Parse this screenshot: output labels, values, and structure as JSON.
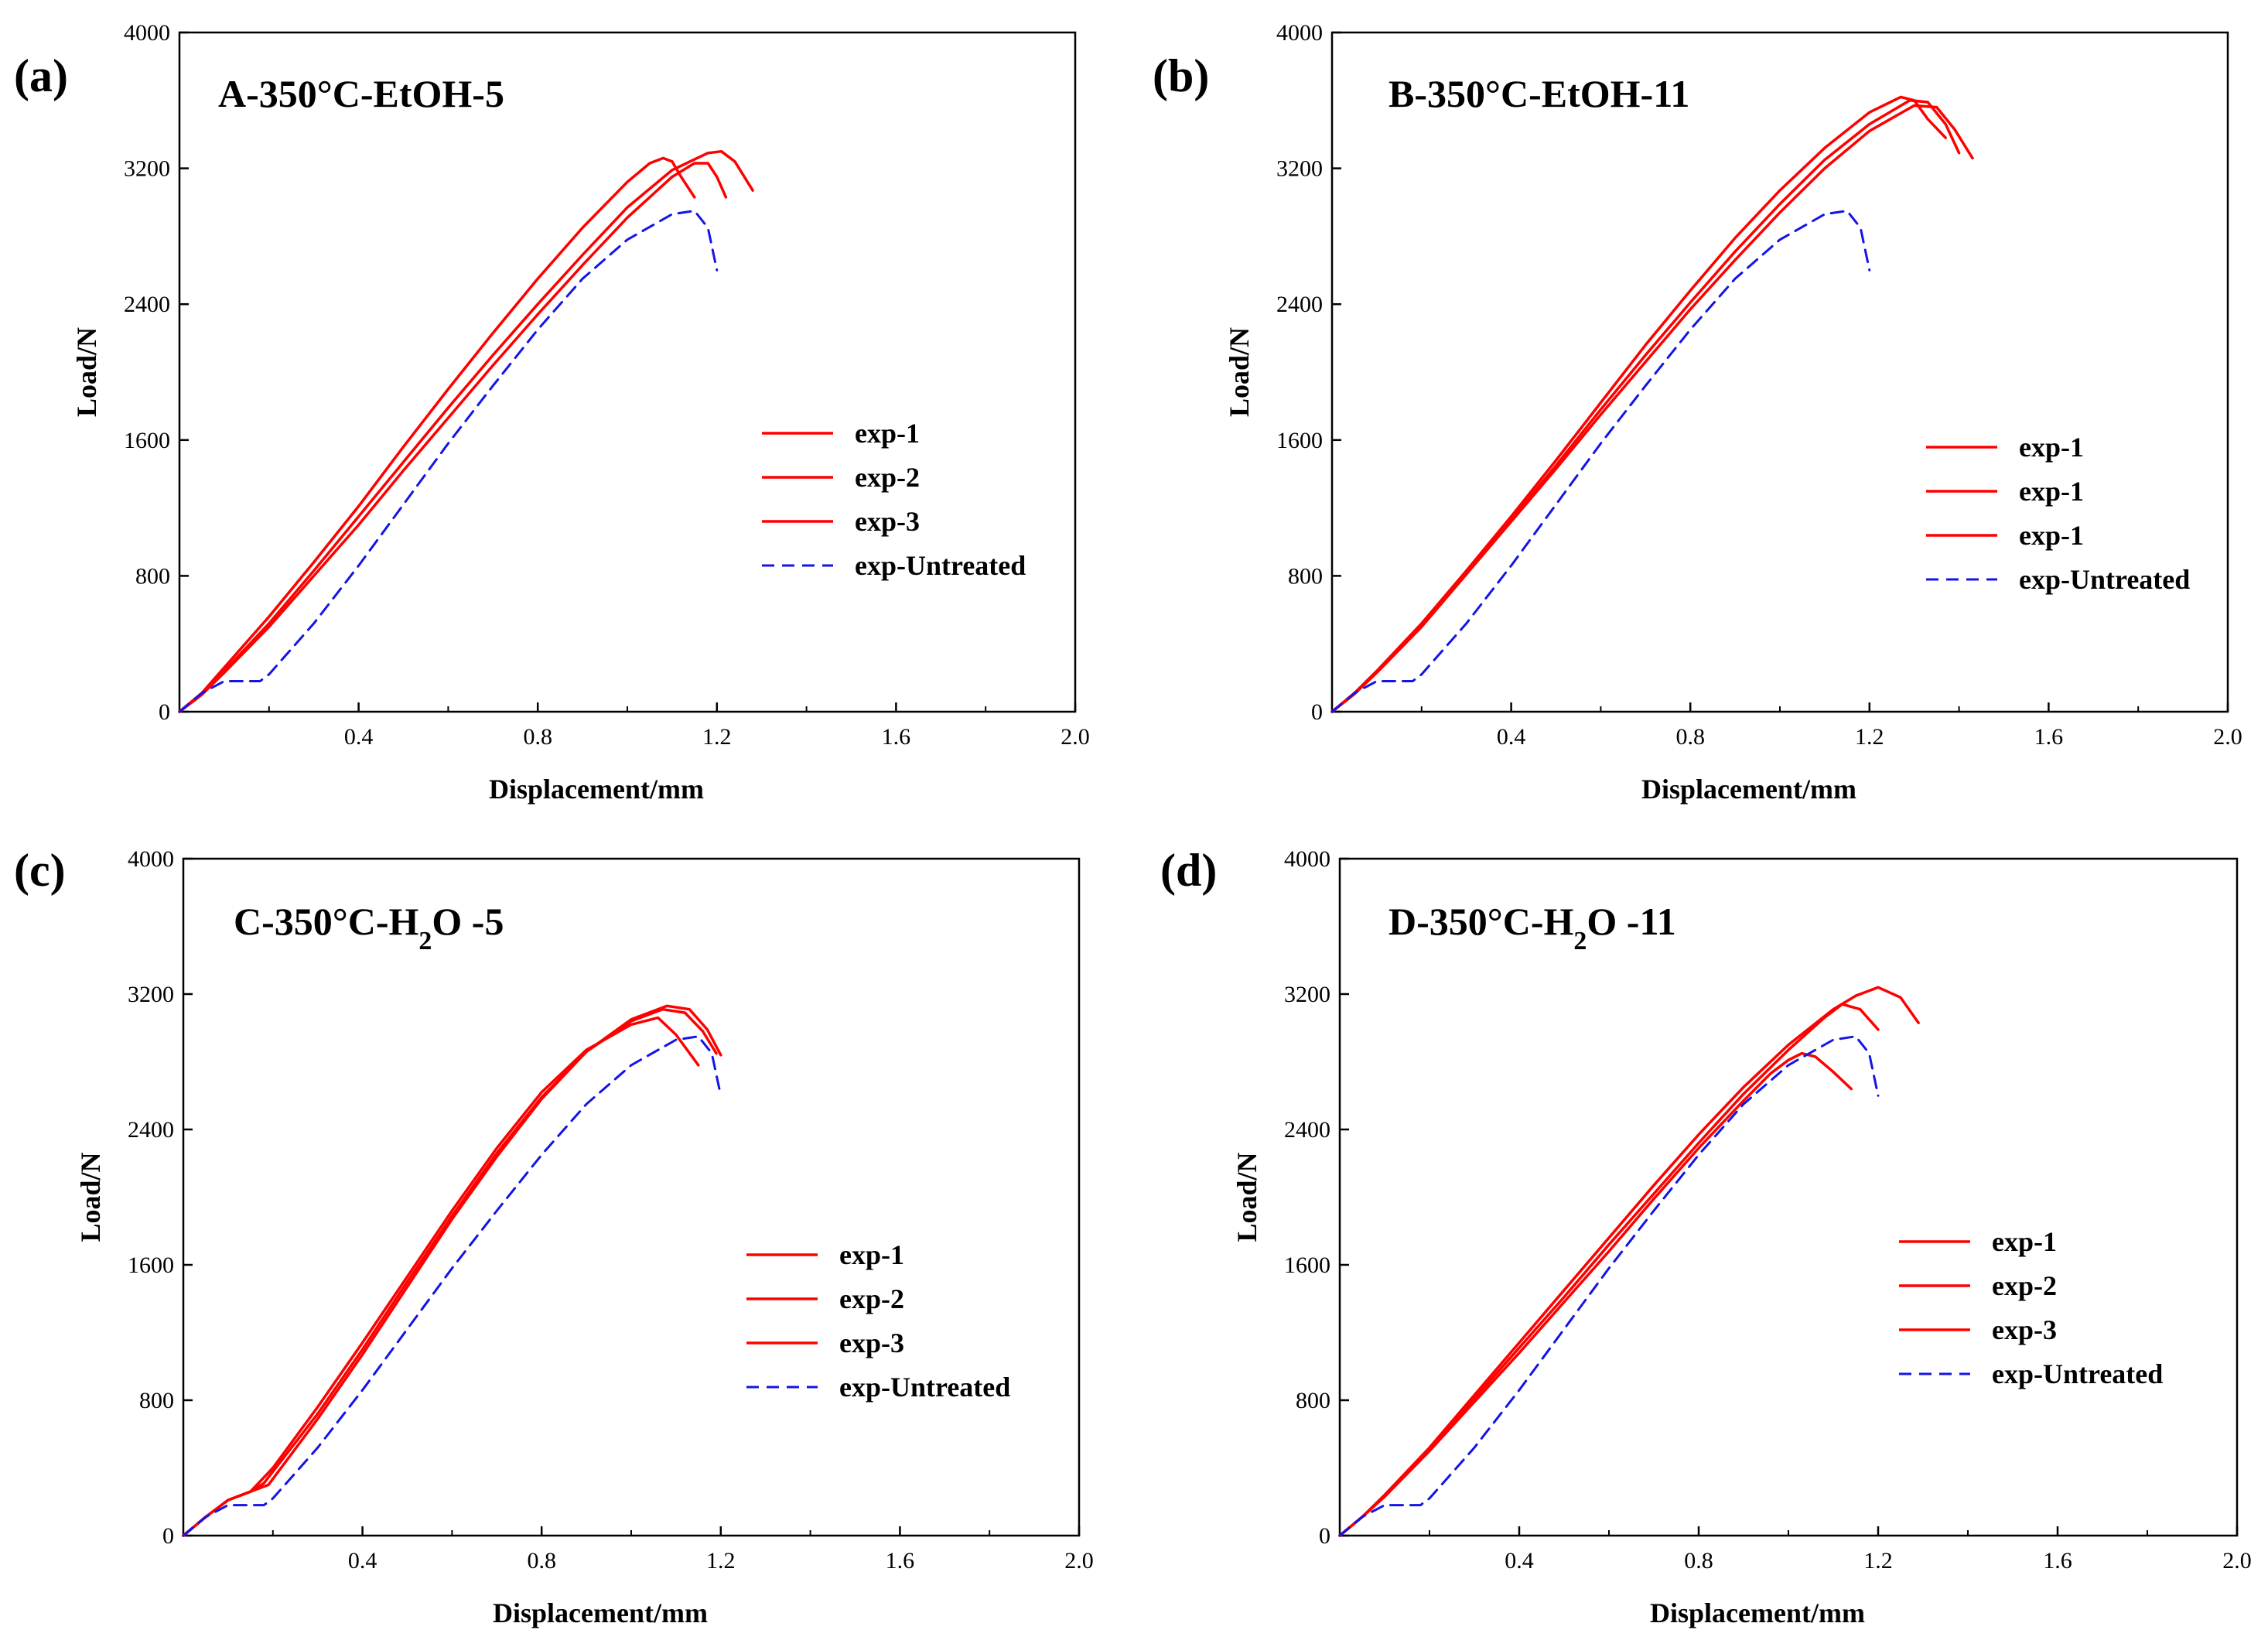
{
  "figure": {
    "panels": [
      "(a)",
      "(b)",
      "(c)",
      "(d)"
    ]
  },
  "chart_data": [
    {
      "panel_label": "(a)",
      "type": "line",
      "title": "A-350°C-EtOH-5",
      "title_parts": [
        {
          "t": "A-350°C-EtOH-5"
        }
      ],
      "xlabel": "Displacement/mm",
      "ylabel": "Load/N",
      "xlim": [
        0,
        2.0
      ],
      "ylim": [
        0,
        4000
      ],
      "xticks": [
        "0.4",
        "0.8",
        "1.2",
        "1.6",
        "2.0"
      ],
      "yticks": [
        "0",
        "800",
        "1600",
        "2400",
        "3200",
        "4000"
      ],
      "legend_position": "center-right",
      "series": [
        {
          "name": "exp-1",
          "style": "red-solid",
          "x": [
            0,
            0.05,
            0.1,
            0.2,
            0.3,
            0.4,
            0.5,
            0.6,
            0.7,
            0.8,
            0.9,
            1.0,
            1.05,
            1.08,
            1.1,
            1.12,
            1.15
          ],
          "y": [
            0,
            110,
            260,
            560,
            880,
            1210,
            1560,
            1900,
            2230,
            2550,
            2850,
            3120,
            3230,
            3260,
            3240,
            3150,
            3030
          ]
        },
        {
          "name": "exp-2",
          "style": "red-solid",
          "x": [
            0,
            0.05,
            0.1,
            0.2,
            0.3,
            0.4,
            0.5,
            0.6,
            0.7,
            0.8,
            0.9,
            1.0,
            1.1,
            1.15,
            1.18,
            1.2,
            1.22
          ],
          "y": [
            0,
            100,
            230,
            500,
            800,
            1100,
            1420,
            1730,
            2040,
            2340,
            2630,
            2910,
            3150,
            3230,
            3230,
            3150,
            3030
          ]
        },
        {
          "name": "exp-3",
          "style": "red-solid",
          "x": [
            0,
            0.05,
            0.1,
            0.2,
            0.3,
            0.4,
            0.5,
            0.6,
            0.7,
            0.8,
            0.9,
            1.0,
            1.1,
            1.18,
            1.21,
            1.24,
            1.28
          ],
          "y": [
            0,
            105,
            240,
            520,
            830,
            1150,
            1470,
            1790,
            2100,
            2400,
            2690,
            2970,
            3190,
            3290,
            3300,
            3240,
            3070
          ]
        },
        {
          "name": "exp-Untreated",
          "style": "blue-dashed",
          "x": [
            0,
            0.05,
            0.1,
            0.18,
            0.2,
            0.3,
            0.4,
            0.5,
            0.6,
            0.7,
            0.8,
            0.9,
            1.0,
            1.1,
            1.15,
            1.18,
            1.2
          ],
          "y": [
            0,
            110,
            180,
            180,
            220,
            520,
            860,
            1220,
            1580,
            1920,
            2250,
            2550,
            2780,
            2930,
            2950,
            2850,
            2600
          ]
        }
      ]
    },
    {
      "panel_label": "(b)",
      "type": "line",
      "title": "B-350°C-EtOH-11",
      "title_parts": [
        {
          "t": "B-350°C-EtOH-11"
        }
      ],
      "xlabel": "Displacement/mm",
      "ylabel": "Load/N",
      "xlim": [
        0,
        2.0
      ],
      "ylim": [
        0,
        4000
      ],
      "xticks": [
        "0.4",
        "0.8",
        "1.2",
        "1.6",
        "2.0"
      ],
      "yticks": [
        "0",
        "800",
        "1600",
        "2400",
        "3200",
        "4000"
      ],
      "legend_position": "center-right",
      "series": [
        {
          "name": "exp-1",
          "style": "red-solid",
          "x": [
            0,
            0.05,
            0.1,
            0.2,
            0.3,
            0.4,
            0.5,
            0.6,
            0.7,
            0.8,
            0.9,
            1.0,
            1.1,
            1.2,
            1.27,
            1.3,
            1.33,
            1.37
          ],
          "y": [
            0,
            110,
            240,
            520,
            830,
            1150,
            1480,
            1820,
            2160,
            2480,
            2790,
            3070,
            3320,
            3530,
            3620,
            3600,
            3490,
            3380
          ]
        },
        {
          "name": "exp-1",
          "style": "red-solid",
          "x": [
            0,
            0.05,
            0.1,
            0.2,
            0.3,
            0.4,
            0.5,
            0.6,
            0.7,
            0.8,
            0.9,
            1.0,
            1.1,
            1.2,
            1.29,
            1.33,
            1.37,
            1.4
          ],
          "y": [
            0,
            105,
            235,
            510,
            820,
            1130,
            1450,
            1780,
            2100,
            2410,
            2710,
            2990,
            3250,
            3460,
            3600,
            3590,
            3460,
            3290
          ]
        },
        {
          "name": "exp-1",
          "style": "red-solid",
          "x": [
            0,
            0.05,
            0.1,
            0.2,
            0.3,
            0.4,
            0.5,
            0.6,
            0.7,
            0.8,
            0.9,
            1.0,
            1.1,
            1.2,
            1.3,
            1.35,
            1.39,
            1.43
          ],
          "y": [
            0,
            105,
            230,
            500,
            810,
            1120,
            1430,
            1750,
            2060,
            2370,
            2660,
            2940,
            3200,
            3420,
            3570,
            3560,
            3430,
            3260
          ]
        },
        {
          "name": "exp-Untreated",
          "style": "blue-dashed",
          "x": [
            0,
            0.05,
            0.1,
            0.18,
            0.2,
            0.3,
            0.4,
            0.5,
            0.6,
            0.7,
            0.8,
            0.9,
            1.0,
            1.1,
            1.15,
            1.18,
            1.2
          ],
          "y": [
            0,
            110,
            180,
            180,
            220,
            520,
            860,
            1220,
            1580,
            1920,
            2250,
            2550,
            2780,
            2930,
            2950,
            2850,
            2600
          ]
        }
      ]
    },
    {
      "panel_label": "(c)",
      "type": "line",
      "title": "C-350°C-H2O -5",
      "title_parts": [
        {
          "t": "C-350°C-H"
        },
        {
          "t": "2",
          "sub": true
        },
        {
          "t": "O -5"
        }
      ],
      "xlabel": "Displacement/mm",
      "ylabel": "Load/N",
      "xlim": [
        0,
        2.0
      ],
      "ylim": [
        0,
        4000
      ],
      "xticks": [
        "0.4",
        "0.8",
        "1.2",
        "1.6",
        "2.0"
      ],
      "yticks": [
        "0",
        "800",
        "1600",
        "2400",
        "3200",
        "4000"
      ],
      "legend_position": "center-right",
      "series": [
        {
          "name": "exp-1",
          "style": "red-solid",
          "x": [
            0,
            0.05,
            0.1,
            0.15,
            0.2,
            0.3,
            0.4,
            0.5,
            0.6,
            0.7,
            0.8,
            0.9,
            1.0,
            1.06,
            1.1,
            1.15
          ],
          "y": [
            0,
            110,
            210,
            260,
            400,
            760,
            1140,
            1530,
            1920,
            2290,
            2620,
            2870,
            3020,
            3060,
            2960,
            2780
          ]
        },
        {
          "name": "exp-2",
          "style": "red-solid",
          "x": [
            0,
            0.05,
            0.1,
            0.15,
            0.18,
            0.3,
            0.4,
            0.5,
            0.6,
            0.7,
            0.8,
            0.9,
            1.0,
            1.07,
            1.12,
            1.16,
            1.19
          ],
          "y": [
            0,
            110,
            210,
            260,
            310,
            720,
            1100,
            1500,
            1890,
            2260,
            2590,
            2860,
            3040,
            3110,
            3090,
            2980,
            2850
          ]
        },
        {
          "name": "exp-3",
          "style": "red-solid",
          "x": [
            0,
            0.05,
            0.1,
            0.15,
            0.19,
            0.3,
            0.4,
            0.5,
            0.6,
            0.7,
            0.8,
            0.9,
            1.0,
            1.08,
            1.13,
            1.17,
            1.2
          ],
          "y": [
            0,
            110,
            210,
            260,
            300,
            690,
            1070,
            1470,
            1870,
            2240,
            2580,
            2860,
            3050,
            3130,
            3110,
            2990,
            2840
          ]
        },
        {
          "name": "exp-Untreated",
          "style": "blue-dashed",
          "x": [
            0,
            0.05,
            0.1,
            0.18,
            0.2,
            0.3,
            0.4,
            0.5,
            0.6,
            0.7,
            0.8,
            0.9,
            1.0,
            1.1,
            1.15,
            1.18,
            1.2
          ],
          "y": [
            0,
            110,
            180,
            180,
            220,
            520,
            860,
            1220,
            1580,
            1920,
            2250,
            2550,
            2780,
            2930,
            2950,
            2850,
            2600
          ]
        }
      ]
    },
    {
      "panel_label": "(d)",
      "type": "line",
      "title": "D-350°C-H2O -11",
      "title_parts": [
        {
          "t": "D-350°C-H"
        },
        {
          "t": "2",
          "sub": true
        },
        {
          "t": "O -11"
        }
      ],
      "xlabel": "Displacement/mm",
      "ylabel": "Load/N",
      "xlim": [
        0,
        2.0
      ],
      "ylim": [
        0,
        4000
      ],
      "xticks": [
        "0.4",
        "0.8",
        "1.2",
        "1.6",
        "2.0"
      ],
      "yticks": [
        "0",
        "800",
        "1600",
        "2400",
        "3200",
        "4000"
      ],
      "legend_position": "center-right",
      "series": [
        {
          "name": "exp-1",
          "style": "red-solid",
          "x": [
            0,
            0.05,
            0.1,
            0.2,
            0.3,
            0.4,
            0.5,
            0.6,
            0.7,
            0.8,
            0.9,
            1.0,
            1.1,
            1.15,
            1.2,
            1.25,
            1.29
          ],
          "y": [
            0,
            110,
            240,
            520,
            830,
            1140,
            1450,
            1760,
            2070,
            2370,
            2650,
            2900,
            3110,
            3190,
            3240,
            3180,
            3030
          ]
        },
        {
          "name": "exp-2",
          "style": "red-solid",
          "x": [
            0,
            0.05,
            0.1,
            0.2,
            0.3,
            0.4,
            0.5,
            0.6,
            0.7,
            0.8,
            0.9,
            1.0,
            1.08,
            1.12,
            1.16,
            1.2
          ],
          "y": [
            0,
            110,
            235,
            510,
            810,
            1110,
            1410,
            1720,
            2020,
            2320,
            2610,
            2870,
            3060,
            3140,
            3110,
            2990
          ]
        },
        {
          "name": "exp-3",
          "style": "red-solid",
          "x": [
            0,
            0.05,
            0.1,
            0.2,
            0.3,
            0.4,
            0.5,
            0.6,
            0.7,
            0.8,
            0.9,
            0.96,
            1.0,
            1.03,
            1.06,
            1.1,
            1.14
          ],
          "y": [
            0,
            110,
            230,
            500,
            790,
            1080,
            1380,
            1680,
            1990,
            2290,
            2570,
            2730,
            2810,
            2850,
            2830,
            2740,
            2640
          ]
        },
        {
          "name": "exp-Untreated",
          "style": "blue-dashed",
          "x": [
            0,
            0.05,
            0.1,
            0.18,
            0.2,
            0.3,
            0.4,
            0.5,
            0.6,
            0.7,
            0.8,
            0.9,
            1.0,
            1.1,
            1.15,
            1.18,
            1.2
          ],
          "y": [
            0,
            110,
            180,
            180,
            220,
            520,
            860,
            1220,
            1580,
            1920,
            2250,
            2550,
            2780,
            2930,
            2950,
            2850,
            2600
          ]
        }
      ]
    }
  ],
  "colors": {
    "red_series": "#ff0000",
    "blue_series": "#1414e6",
    "axis": "#000000",
    "background": "#ffffff"
  }
}
